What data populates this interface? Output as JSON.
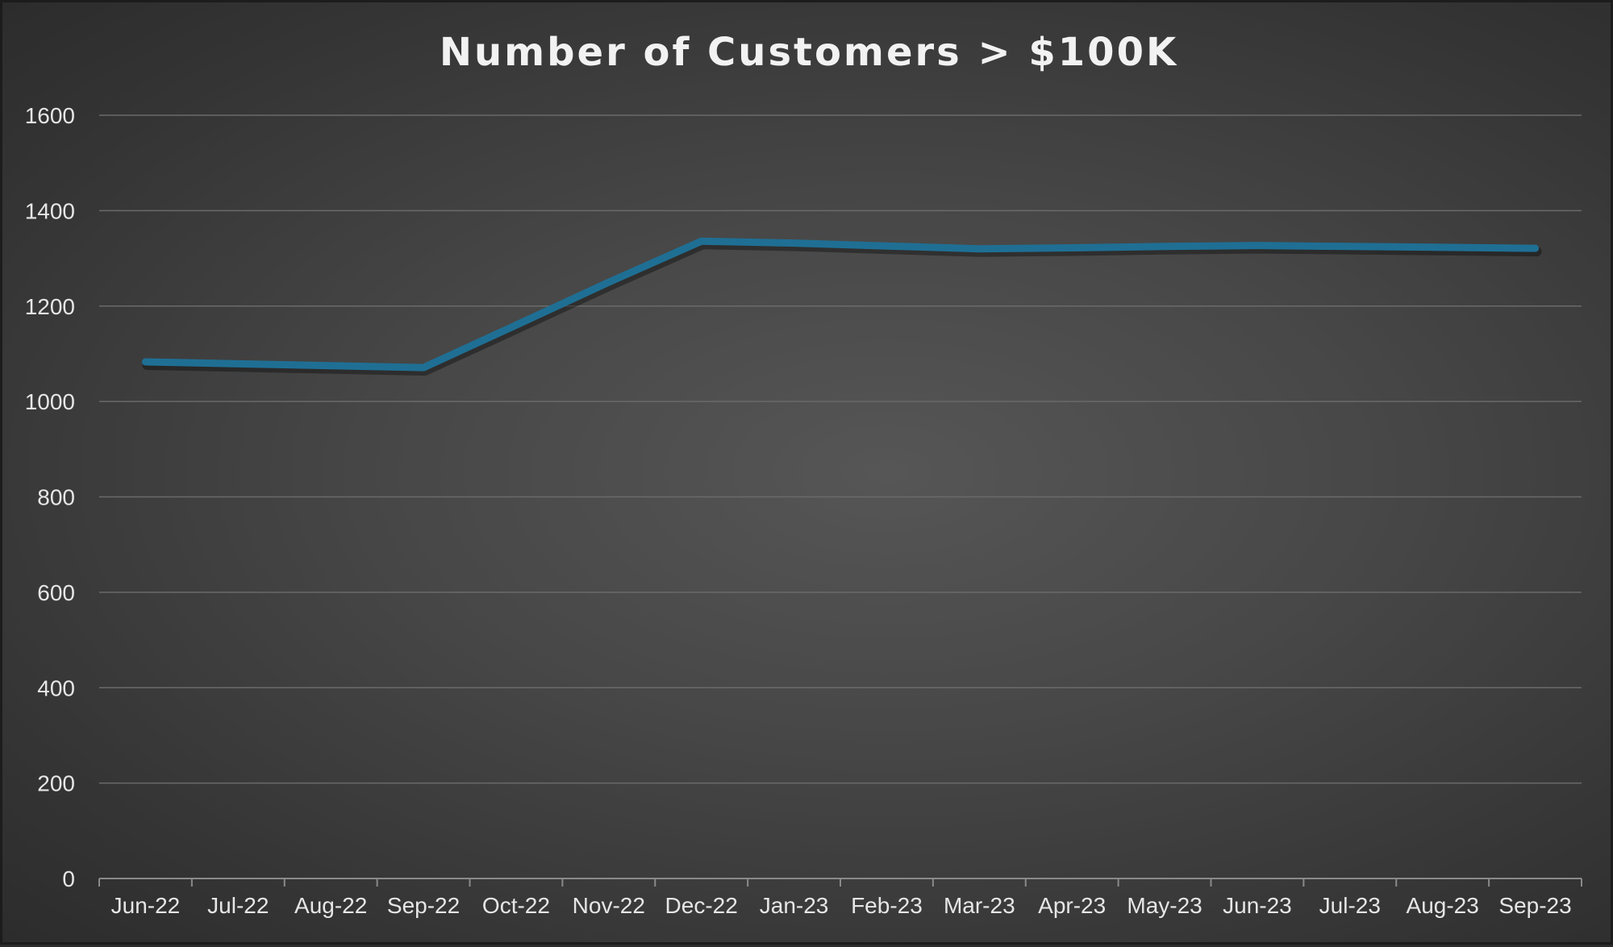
{
  "chart_data": {
    "type": "line",
    "title": "Number of Customers > $100K",
    "xlabel": "",
    "ylabel": "",
    "categories": [
      "Jun-22",
      "Jul-22",
      "Aug-22",
      "Sep-22",
      "Oct-22",
      "Nov-22",
      "Dec-22",
      "Jan-23",
      "Feb-23",
      "Mar-23",
      "Apr-23",
      "May-23",
      "Jun-23",
      "Jul-23",
      "Aug-23",
      "Sep-23"
    ],
    "series": [
      {
        "color": "#1f6f94",
        "values": [
          1083,
          1079,
          1075,
          1071,
          1160,
          1250,
          1336,
          1332,
          1326,
          1320,
          1322,
          1325,
          1327,
          1325,
          1323,
          1321
        ]
      }
    ],
    "ylim": [
      0,
      1600
    ],
    "yticks": [
      0,
      200,
      400,
      600,
      800,
      1000,
      1200,
      1400,
      1600
    ],
    "grid": true,
    "legend": "none"
  }
}
